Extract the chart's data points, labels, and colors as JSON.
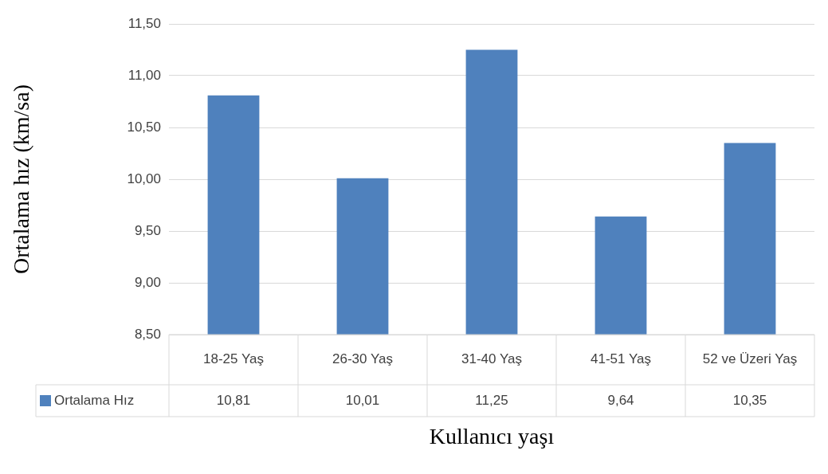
{
  "chart_data": {
    "type": "bar",
    "xlabel": "Kullanıcı yaşı",
    "ylabel": "Ortalama hız (km/sa)",
    "categories": [
      "18-25 Yaş",
      "26-30 Yaş",
      "31-40 Yaş",
      "41-51 Yaş",
      "52 ve Üzeri Yaş"
    ],
    "series": [
      {
        "name": "Ortalama Hız",
        "color": "#4f81bd",
        "values": [
          10.81,
          10.01,
          11.25,
          9.64,
          10.35
        ],
        "value_labels": [
          "10,81",
          "10,01",
          "11,25",
          "9,64",
          "10,35"
        ]
      }
    ],
    "ylim": [
      8.5,
      11.5
    ],
    "yticks": [
      {
        "value": 8.5,
        "label": "8,50"
      },
      {
        "value": 9,
        "label": "9,00"
      },
      {
        "value": 9.5,
        "label": "9,50"
      },
      {
        "value": 10,
        "label": "10,00"
      },
      {
        "value": 10.5,
        "label": "10,50"
      },
      {
        "value": 11,
        "label": "11,00"
      },
      {
        "value": 11.5,
        "label": "11,50"
      }
    ],
    "grid": "y",
    "legend": "bottom"
  }
}
